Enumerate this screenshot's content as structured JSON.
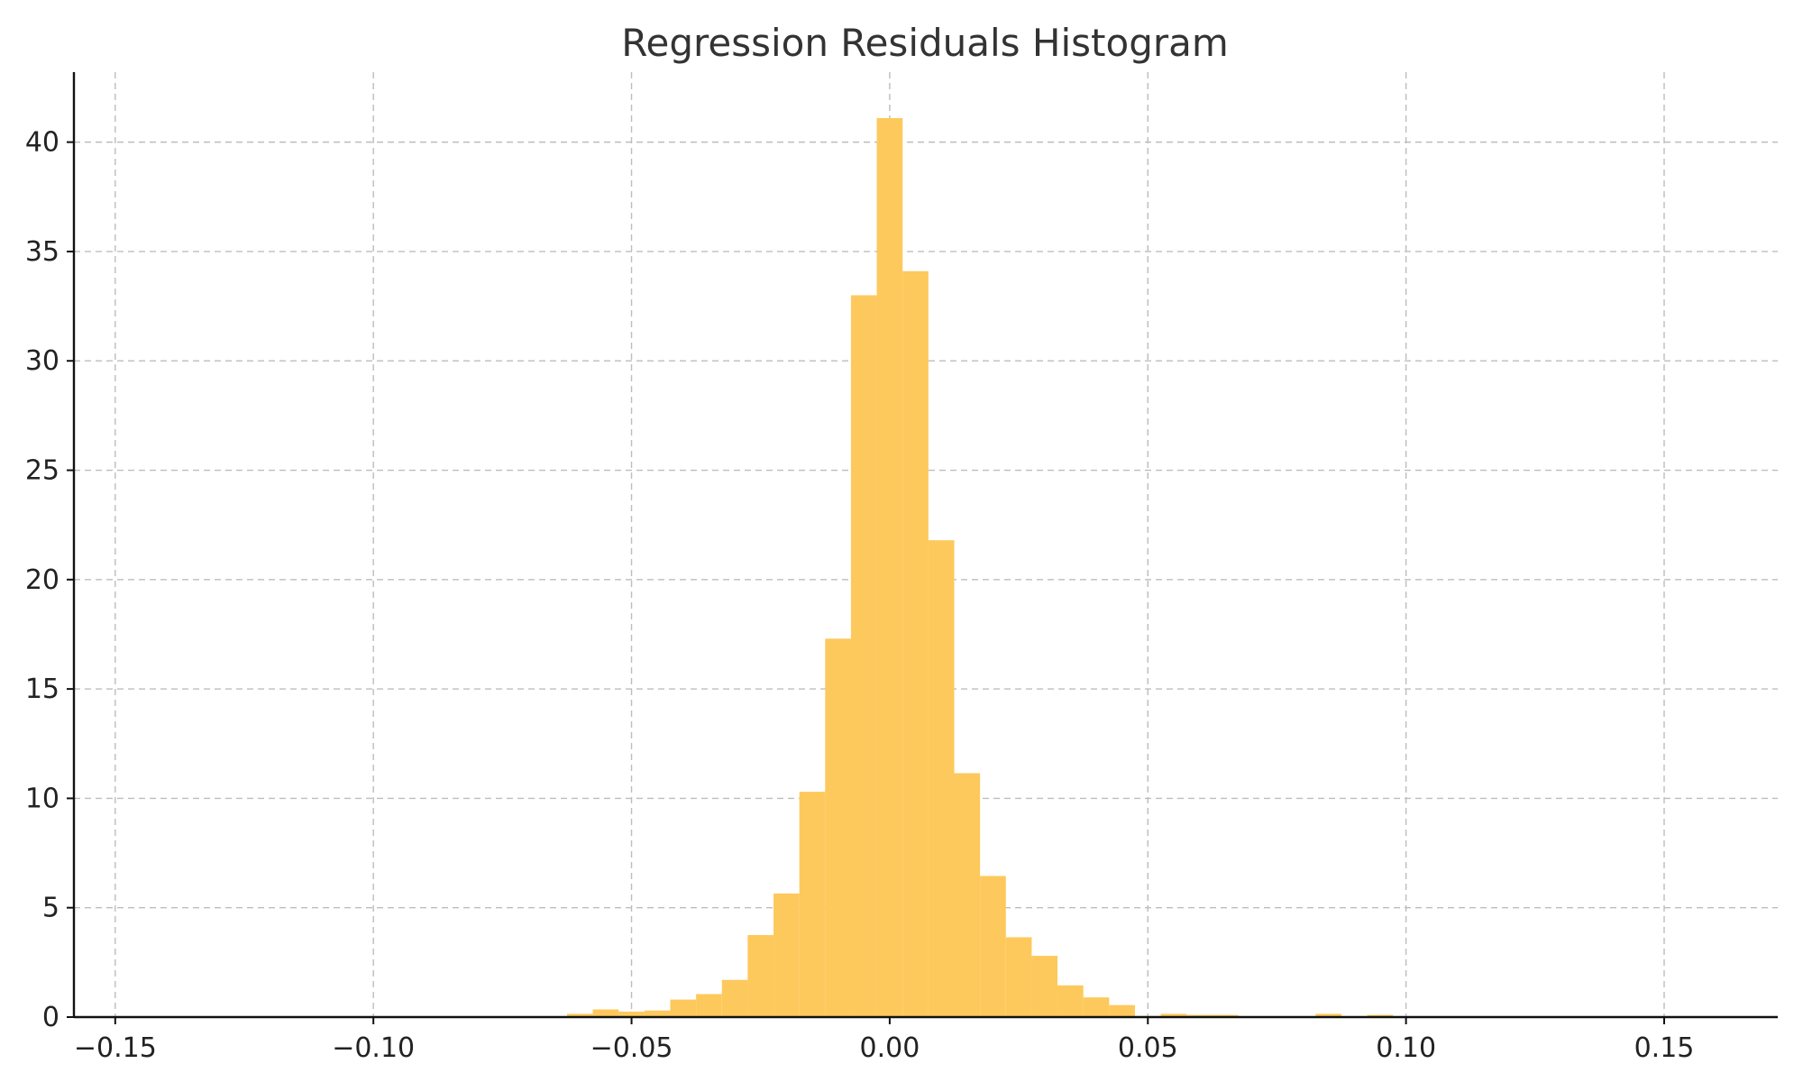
{
  "chart_data": {
    "type": "bar",
    "title": "Regression Residuals Histogram",
    "xlabel": "",
    "ylabel": "",
    "xlim": [
      -0.158,
      0.172
    ],
    "ylim": [
      0,
      43.2
    ],
    "grid": true,
    "bar_color": "#fdc95c",
    "x_ticks": [
      {
        "value": -0.15,
        "label": "−0.15"
      },
      {
        "value": -0.1,
        "label": "−0.10"
      },
      {
        "value": -0.05,
        "label": "−0.05"
      },
      {
        "value": 0.0,
        "label": "0.00"
      },
      {
        "value": 0.05,
        "label": "0.05"
      },
      {
        "value": 0.1,
        "label": "0.10"
      },
      {
        "value": 0.15,
        "label": "0.15"
      }
    ],
    "y_ticks": [
      {
        "value": 0,
        "label": "0"
      },
      {
        "value": 5,
        "label": "5"
      },
      {
        "value": 10,
        "label": "10"
      },
      {
        "value": 15,
        "label": "15"
      },
      {
        "value": 20,
        "label": "20"
      },
      {
        "value": 25,
        "label": "25"
      },
      {
        "value": 30,
        "label": "30"
      },
      {
        "value": 35,
        "label": "35"
      },
      {
        "value": 40,
        "label": "40"
      }
    ],
    "bins": [
      {
        "x0": -0.0625,
        "x1": -0.0575,
        "value": 0.15
      },
      {
        "x0": -0.0575,
        "x1": -0.0525,
        "value": 0.35
      },
      {
        "x0": -0.0525,
        "x1": -0.0475,
        "value": 0.25
      },
      {
        "x0": -0.0475,
        "x1": -0.0425,
        "value": 0.3
      },
      {
        "x0": -0.0425,
        "x1": -0.0375,
        "value": 0.8
      },
      {
        "x0": -0.0375,
        "x1": -0.0325,
        "value": 1.05
      },
      {
        "x0": -0.0325,
        "x1": -0.0275,
        "value": 1.7
      },
      {
        "x0": -0.0275,
        "x1": -0.0225,
        "value": 3.75
      },
      {
        "x0": -0.0225,
        "x1": -0.0175,
        "value": 5.65
      },
      {
        "x0": -0.0175,
        "x1": -0.0125,
        "value": 10.3
      },
      {
        "x0": -0.0125,
        "x1": -0.0075,
        "value": 17.3
      },
      {
        "x0": -0.0075,
        "x1": -0.0025,
        "value": 33.0
      },
      {
        "x0": -0.0025,
        "x1": 0.0025,
        "value": 41.1
      },
      {
        "x0": 0.0025,
        "x1": 0.0075,
        "value": 34.1
      },
      {
        "x0": 0.0075,
        "x1": 0.0125,
        "value": 21.8
      },
      {
        "x0": 0.0125,
        "x1": 0.0175,
        "value": 11.15
      },
      {
        "x0": 0.0175,
        "x1": 0.0225,
        "value": 6.45
      },
      {
        "x0": 0.0225,
        "x1": 0.0275,
        "value": 3.65
      },
      {
        "x0": 0.0275,
        "x1": 0.0325,
        "value": 2.8
      },
      {
        "x0": 0.0325,
        "x1": 0.0375,
        "value": 1.45
      },
      {
        "x0": 0.0375,
        "x1": 0.0425,
        "value": 0.9
      },
      {
        "x0": 0.0425,
        "x1": 0.0475,
        "value": 0.55
      },
      {
        "x0": 0.0475,
        "x1": 0.0525,
        "value": 0.05
      },
      {
        "x0": 0.0525,
        "x1": 0.0575,
        "value": 0.15
      },
      {
        "x0": 0.0575,
        "x1": 0.0625,
        "value": 0.1
      },
      {
        "x0": 0.0625,
        "x1": 0.0675,
        "value": 0.1
      },
      {
        "x0": 0.0675,
        "x1": 0.0725,
        "value": 0
      },
      {
        "x0": 0.0725,
        "x1": 0.0775,
        "value": 0
      },
      {
        "x0": 0.0775,
        "x1": 0.0825,
        "value": 0
      },
      {
        "x0": 0.0825,
        "x1": 0.0875,
        "value": 0.15
      },
      {
        "x0": 0.0875,
        "x1": 0.0925,
        "value": 0
      },
      {
        "x0": 0.0925,
        "x1": 0.0975,
        "value": 0.1
      }
    ]
  }
}
